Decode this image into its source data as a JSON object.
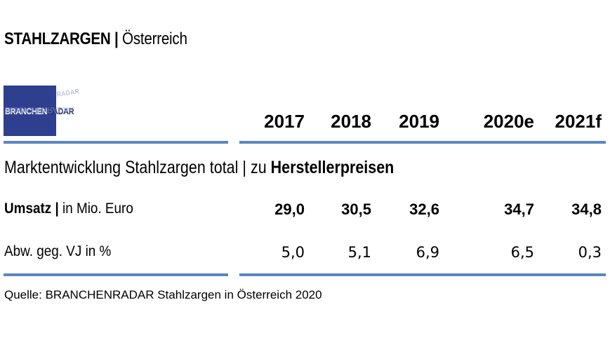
{
  "title": {
    "main": "STAHLZARGEN |",
    "sub": "Österreich"
  },
  "logo": {
    "part1": "BRANCHEN",
    "part2": "RADAR",
    "ghost": "RADAR"
  },
  "section_title": {
    "prefix": "Marktentwicklung Stahlzargen total | zu ",
    "bold": "Herstellerpreisen"
  },
  "rows": [
    {
      "label_bold": "Umsatz |",
      "label_rest": " in Mio. Euro"
    },
    {
      "label_bold": "",
      "label_rest": "Abw. geg. VJ in %"
    }
  ],
  "source": "Quelle: BRANCHENRADAR Stahlzargen in Österreich 2020",
  "colors": {
    "accent_rule": "#5b86c6",
    "logo_bg": "#2e3f8f"
  },
  "chart_data": {
    "type": "table",
    "title": "STAHLZARGEN | Österreich",
    "columns": [
      "2017",
      "2018",
      "2019",
      "2020e",
      "2021f"
    ],
    "rows": [
      {
        "label": "Umsatz | in Mio. Euro",
        "values": [
          "29,0",
          "30,5",
          "32,6",
          "34,7",
          "34,8"
        ]
      },
      {
        "label": "Abw. geg. VJ in %",
        "values": [
          "5,0",
          "5,1",
          "6,9",
          "6,5",
          "0,3"
        ]
      }
    ]
  }
}
